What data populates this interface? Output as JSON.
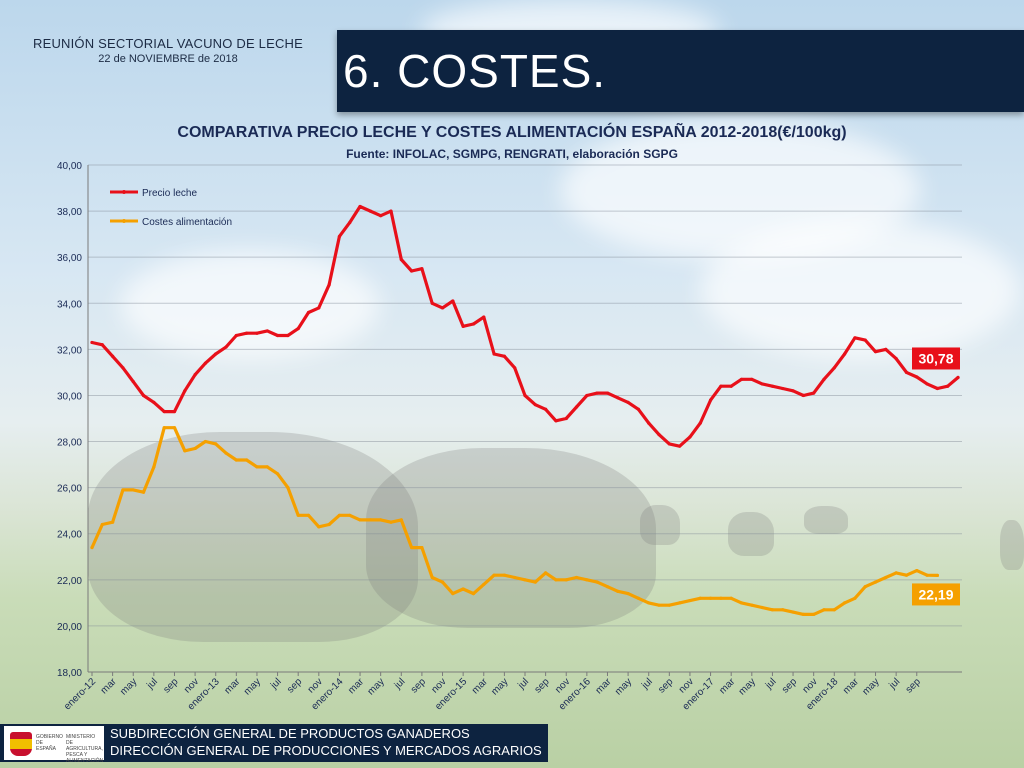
{
  "header": {
    "line1": "REUNIÓN SECTORIAL VACUNO DE LECHE",
    "line2": "22 de NOVIEMBRE de 2018",
    "slide_title": "6. COSTES."
  },
  "footer": {
    "line1": "SUBDIRECCIÓN GENERAL DE PRODUCTOS GANADEROS",
    "line2": "DIRECCIÓN GENERAL DE PRODUCCIONES Y MERCADOS AGRARIOS",
    "logo_left": "GOBIERNO DE ESPAÑA",
    "logo_right": "MINISTERIO DE AGRICULTURA, PESCA Y ALIMENTACIÓN"
  },
  "colors": {
    "leche": "#e8101a",
    "costes": "#f5a000",
    "title_bg": "#0d2340",
    "chart_text": "#1a2a55"
  },
  "chart_data": {
    "type": "line",
    "title": "COMPARATIVA PRECIO LECHE Y COSTES ALIMENTACIÓN ESPAÑA 2012-2018(€/100kg)",
    "subtitle": "Fuente: INFOLAC, SGMPG, RENGRATI, elaboración SGPG",
    "ylim": [
      18,
      40
    ],
    "y_ticks": [
      "18,00",
      "20,00",
      "22,00",
      "24,00",
      "26,00",
      "28,00",
      "30,00",
      "32,00",
      "34,00",
      "36,00",
      "38,00",
      "40,00"
    ],
    "x_tick_labels": [
      "enero-12",
      "mar",
      "may",
      "jul",
      "sep",
      "nov",
      "enero-13",
      "mar",
      "may",
      "jul",
      "sep",
      "nov",
      "enero-14",
      "mar",
      "may",
      "jul",
      "sep",
      "nov",
      "enero-15",
      "mar",
      "may",
      "jul",
      "sep",
      "nov",
      "enero-16",
      "mar",
      "may",
      "jul",
      "sep",
      "nov",
      "enero-17",
      "mar",
      "may",
      "jul",
      "sep",
      "nov",
      "enero-18",
      "mar",
      "may",
      "jul",
      "sep"
    ],
    "legend_position": "top-left",
    "grid": true,
    "series": [
      {
        "name": "Precio leche",
        "color": "#e8101a",
        "end_label": "30,78",
        "values": [
          32.3,
          32.2,
          31.7,
          31.2,
          30.6,
          30.0,
          29.7,
          29.3,
          29.3,
          30.2,
          30.9,
          31.4,
          31.8,
          32.1,
          32.6,
          32.7,
          32.7,
          32.8,
          32.6,
          32.6,
          32.9,
          33.6,
          33.8,
          34.8,
          36.9,
          37.5,
          38.2,
          38.0,
          37.8,
          38.0,
          35.9,
          35.4,
          35.5,
          34.0,
          33.8,
          34.1,
          33.0,
          33.1,
          33.4,
          31.8,
          31.7,
          31.2,
          30.0,
          29.6,
          29.4,
          28.9,
          29.0,
          29.5,
          30.0,
          30.1,
          30.1,
          29.9,
          29.7,
          29.4,
          28.8,
          28.3,
          27.9,
          27.8,
          28.2,
          28.8,
          29.8,
          30.4,
          30.4,
          30.7,
          30.7,
          30.5,
          30.4,
          30.3,
          30.2,
          30.0,
          30.1,
          30.7,
          31.2,
          31.8,
          32.5,
          32.4,
          31.9,
          32.0,
          31.6,
          31.0,
          30.8,
          30.5,
          30.3,
          30.4,
          30.78
        ]
      },
      {
        "name": "Costes alimentación",
        "color": "#f5a000",
        "end_label": "22,19",
        "values": [
          23.4,
          24.4,
          24.5,
          25.9,
          25.9,
          25.8,
          26.9,
          28.6,
          28.6,
          27.6,
          27.7,
          28.0,
          27.9,
          27.5,
          27.2,
          27.2,
          26.9,
          26.9,
          26.6,
          26.0,
          24.8,
          24.8,
          24.3,
          24.4,
          24.8,
          24.8,
          24.6,
          24.6,
          24.6,
          24.5,
          24.6,
          23.4,
          23.4,
          22.1,
          21.9,
          21.4,
          21.6,
          21.4,
          21.8,
          22.2,
          22.2,
          22.1,
          22.0,
          21.9,
          22.3,
          22.0,
          22.0,
          22.1,
          22.0,
          21.9,
          21.7,
          21.5,
          21.4,
          21.2,
          21.0,
          20.9,
          20.9,
          21.0,
          21.1,
          21.2,
          21.2,
          21.2,
          21.2,
          21.0,
          20.9,
          20.8,
          20.7,
          20.7,
          20.6,
          20.5,
          20.5,
          20.7,
          20.7,
          21.0,
          21.2,
          21.7,
          21.9,
          22.1,
          22.3,
          22.2,
          22.4,
          22.2,
          22.19
        ]
      }
    ]
  }
}
